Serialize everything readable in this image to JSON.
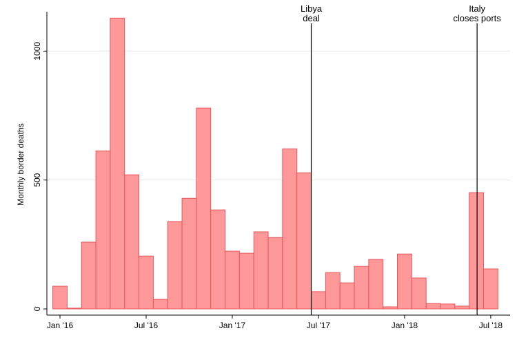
{
  "chart_data": {
    "type": "bar",
    "title": "",
    "xlabel": "",
    "ylabel": "Monthly border deaths",
    "ylim": [
      0,
      1200
    ],
    "yticks": [
      0,
      500,
      1000
    ],
    "grid": true,
    "bar_color": "#ff9999",
    "bar_edge_color": "#e8555a",
    "categories": [
      "Jan '16",
      "Feb '16",
      "Mar '16",
      "Apr '16",
      "May '16",
      "Jun '16",
      "Jul '16",
      "Aug '16",
      "Sep '16",
      "Oct '16",
      "Nov '16",
      "Dec '16",
      "Jan '17",
      "Feb '17",
      "Mar '17",
      "Apr '17",
      "May '17",
      "Jun '17",
      "Jul '17",
      "Aug '17",
      "Sep '17",
      "Oct '17",
      "Nov '17",
      "Dec '17",
      "Jan '18",
      "Feb '18",
      "Mar '18",
      "Apr '18",
      "May '18",
      "Jun '18",
      "Jul '18"
    ],
    "values": [
      88,
      3,
      259,
      613,
      1128,
      520,
      205,
      37,
      339,
      429,
      779,
      384,
      224,
      216,
      299,
      277,
      621,
      528,
      67,
      141,
      101,
      165,
      192,
      8,
      213,
      120,
      21,
      19,
      11,
      451,
      155
    ],
    "xticks": [
      {
        "index": 0,
        "label": "Jan '16"
      },
      {
        "index": 6,
        "label": "Jul '16"
      },
      {
        "index": 12,
        "label": "Jan '17"
      },
      {
        "index": 18,
        "label": "Jul '17"
      },
      {
        "index": 24,
        "label": "Jan '18"
      },
      {
        "index": 30,
        "label": "Jul '18"
      }
    ],
    "annotations": [
      {
        "index": 17.5,
        "lines": [
          "Libya",
          "deal"
        ]
      },
      {
        "index": 29.05,
        "lines": [
          "Italy",
          "closes ports"
        ]
      }
    ]
  }
}
